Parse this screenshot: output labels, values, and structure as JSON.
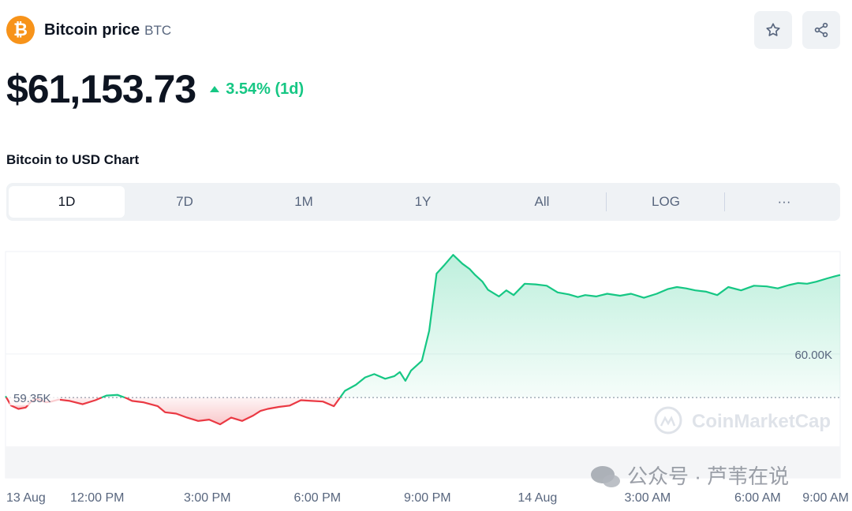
{
  "coin": {
    "name": "Bitcoin price",
    "symbol": "BTC",
    "logo_glyph": "₿",
    "logo_color": "#f7931a"
  },
  "price": {
    "value": "$61,153.73",
    "change": "3.54% (1d)",
    "direction": "up",
    "up_color": "#16c784",
    "down_color": "#ea3943"
  },
  "actions": {
    "watchlist_icon": "star-icon",
    "share_icon": "share-icon"
  },
  "chart_heading": "Bitcoin to USD Chart",
  "tabs": [
    {
      "label": "1D",
      "active": true
    },
    {
      "label": "7D",
      "active": false
    },
    {
      "label": "1M",
      "active": false
    },
    {
      "label": "1Y",
      "active": false
    },
    {
      "label": "All",
      "active": false
    },
    {
      "label": "LOG",
      "active": false
    },
    {
      "label": "···",
      "active": false
    }
  ],
  "watermark": {
    "brand": "CoinMarketCap",
    "overlay": "公众号 · 芦苇在说"
  },
  "chart_data": {
    "type": "area",
    "title": "",
    "xlabel": "",
    "ylabel": "",
    "baseline": 59350,
    "baseline_label": "59.35K",
    "y_gridline": 60000,
    "y_gridline_label": "60.00K",
    "ylim": [
      58150,
      61530
    ],
    "xlim": [
      0,
      22.75
    ],
    "x_ticks": [
      {
        "x": 0,
        "label": "13 Aug"
      },
      {
        "x": 2.5,
        "label": "12:00 PM"
      },
      {
        "x": 5.5,
        "label": "3:00 PM"
      },
      {
        "x": 8.5,
        "label": "6:00 PM"
      },
      {
        "x": 11.5,
        "label": "9:00 PM"
      },
      {
        "x": 14.5,
        "label": "14 Aug"
      },
      {
        "x": 17.5,
        "label": "3:00 AM"
      },
      {
        "x": 20.5,
        "label": "6:00 AM"
      },
      {
        "x": 22.75,
        "label": "9:00 AM"
      }
    ],
    "series": [
      {
        "x": [
          0,
          0.15,
          0.35,
          0.55,
          0.7,
          0.85,
          1.1,
          1.25,
          1.45,
          1.75,
          2.1,
          2.45,
          2.75,
          3.05,
          3.3,
          3.45,
          3.75,
          3.95,
          4.15,
          4.35,
          4.65,
          4.95,
          5.25,
          5.55,
          5.85,
          6.15,
          6.45,
          6.75,
          6.95,
          7.15,
          7.45,
          7.75,
          8.05,
          8.35,
          8.65,
          8.95,
          9.25,
          9.55,
          9.8,
          10.05,
          10.35,
          10.6,
          10.75,
          10.9,
          11.05,
          11.35,
          11.55,
          11.75,
          11.95,
          12.2,
          12.45,
          12.65,
          12.8,
          13.0,
          13.15,
          13.45,
          13.65,
          13.85,
          14.15,
          14.45,
          14.75,
          15.05,
          15.35,
          15.6,
          15.8,
          16.1,
          16.4,
          16.75,
          17.05,
          17.4,
          17.75,
          18.05,
          18.3,
          18.55,
          18.8,
          19.1,
          19.4,
          19.7,
          20.05,
          20.4,
          20.75,
          21.05,
          21.35,
          21.6,
          21.85,
          22.1,
          22.4,
          22.6,
          22.75
        ],
        "y": [
          59370,
          59230,
          59180,
          59200,
          59290,
          59330,
          59280,
          59290,
          59320,
          59300,
          59250,
          59310,
          59380,
          59390,
          59340,
          59300,
          59280,
          59250,
          59220,
          59130,
          59110,
          59050,
          59000,
          59020,
          58950,
          59050,
          59000,
          59080,
          59150,
          59180,
          59210,
          59230,
          59310,
          59300,
          59290,
          59220,
          59450,
          59540,
          59650,
          59700,
          59630,
          59670,
          59730,
          59600,
          59750,
          59900,
          60350,
          61200,
          61320,
          61480,
          61350,
          61270,
          61180,
          61080,
          60960,
          60860,
          60950,
          60880,
          61050,
          61040,
          61020,
          60920,
          60890,
          60850,
          60880,
          60860,
          60900,
          60870,
          60900,
          60840,
          60900,
          60970,
          61000,
          60980,
          60950,
          60930,
          60880,
          61000,
          60950,
          61020,
          61010,
          60980,
          61030,
          61060,
          61050,
          61080,
          61130,
          61160,
          61180
        ]
      }
    ],
    "grid": false,
    "legend": "none"
  }
}
